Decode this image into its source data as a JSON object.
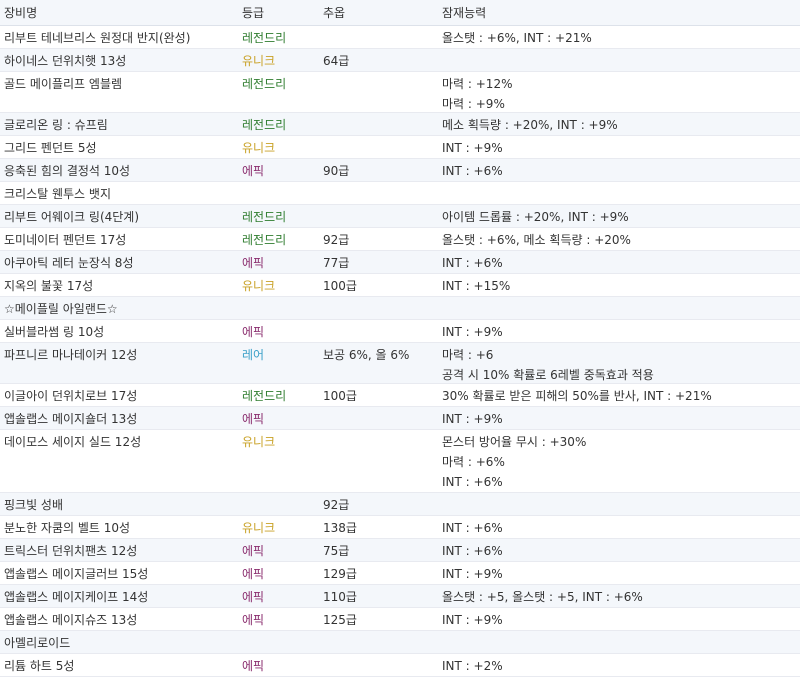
{
  "headers": {
    "name": "장비명",
    "grade": "등급",
    "bonus": "추옵",
    "potential": "잠재능력"
  },
  "grade_colors": {
    "레전드리": "#2f7d2f",
    "유니크": "#c9a227",
    "에픽": "#8a2d6e",
    "레어": "#3aa0c8"
  },
  "rows": [
    {
      "name": "리부트 테네브리스 원정대 반지(완성)",
      "grade": "레전드리",
      "bonus": "",
      "potential": [
        "올스탯 : +6%, INT : +21%"
      ]
    },
    {
      "name": "하이네스 던위치햇 13성",
      "grade": "유니크",
      "bonus": "64급",
      "potential": []
    },
    {
      "name": "골드 메이플리프 엠블렘",
      "grade": "레전드리",
      "bonus": "",
      "potential": [
        "마력 : +12%",
        "마력 : +9%"
      ]
    },
    {
      "name": "글로리온 링 : 슈프림",
      "grade": "레전드리",
      "bonus": "",
      "potential": [
        "메소 획득량 : +20%, INT : +9%"
      ]
    },
    {
      "name": "그리드 펜던트 5성",
      "grade": "유니크",
      "bonus": "",
      "potential": [
        "INT : +9%"
      ]
    },
    {
      "name": "응축된 힘의 결정석 10성",
      "grade": "에픽",
      "bonus": "90급",
      "potential": [
        "INT : +6%"
      ]
    },
    {
      "name": "크리스탈 웬투스 뱃지",
      "grade": "",
      "bonus": "",
      "potential": []
    },
    {
      "name": "리부트 어웨이크 링(4단계)",
      "grade": "레전드리",
      "bonus": "",
      "potential": [
        "아이템 드롭률 : +20%, INT : +9%"
      ]
    },
    {
      "name": "도미네이터 펜던트 17성",
      "grade": "레전드리",
      "bonus": "92급",
      "potential": [
        "올스탯 : +6%, 메소 획득량 : +20%"
      ]
    },
    {
      "name": "아쿠아틱 레터 눈장식 8성",
      "grade": "에픽",
      "bonus": "77급",
      "potential": [
        "INT : +6%"
      ]
    },
    {
      "name": "지옥의 불꽃 17성",
      "grade": "유니크",
      "bonus": "100급",
      "potential": [
        "INT : +15%"
      ]
    },
    {
      "name": "☆메이플릴 아일랜드☆",
      "grade": "",
      "bonus": "",
      "potential": []
    },
    {
      "name": "실버블라썸 링 10성",
      "grade": "에픽",
      "bonus": "",
      "potential": [
        "INT : +9%"
      ]
    },
    {
      "name": "파프니르 마나테이커 12성",
      "grade": "레어",
      "bonus": "보공 6%, 올 6%",
      "potential": [
        "마력 : +6",
        "공격 시 10% 확률로 6레벨 중독효과 적용"
      ]
    },
    {
      "name": "이글아이 던위치로브 17성",
      "grade": "레전드리",
      "bonus": "100급",
      "potential": [
        "30% 확률로 받은 피해의 50%를 반사, INT : +21%"
      ]
    },
    {
      "name": "앱솔랩스 메이지숄더 13성",
      "grade": "에픽",
      "bonus": "",
      "potential": [
        "INT : +9%"
      ]
    },
    {
      "name": "데이모스 세이지 실드 12성",
      "grade": "유니크",
      "bonus": "",
      "potential": [
        "몬스터 방어율 무시 : +30%",
        "마력 : +6%",
        "INT : +6%"
      ]
    },
    {
      "name": "핑크빛 성배",
      "grade": "",
      "bonus": "92급",
      "potential": []
    },
    {
      "name": "분노한 자쿰의 벨트 10성",
      "grade": "유니크",
      "bonus": "138급",
      "potential": [
        "INT : +6%"
      ]
    },
    {
      "name": "트릭스터 던위치팬츠 12성",
      "grade": "에픽",
      "bonus": "75급",
      "potential": [
        "INT : +6%"
      ]
    },
    {
      "name": "앱솔랩스 메이지글러브 15성",
      "grade": "에픽",
      "bonus": "129급",
      "potential": [
        "INT : +9%"
      ]
    },
    {
      "name": "앱솔랩스 메이지케이프 14성",
      "grade": "에픽",
      "bonus": "110급",
      "potential": [
        "올스탯 : +5, 올스탯 : +5, INT : +6%"
      ]
    },
    {
      "name": "앱솔랩스 메이지슈즈 13성",
      "grade": "에픽",
      "bonus": "125급",
      "potential": [
        "INT : +9%"
      ]
    },
    {
      "name": "아멜리로이드",
      "grade": "",
      "bonus": "",
      "potential": []
    },
    {
      "name": "리튬 하트 5성",
      "grade": "에픽",
      "bonus": "",
      "potential": [
        "INT : +2%"
      ]
    }
  ]
}
